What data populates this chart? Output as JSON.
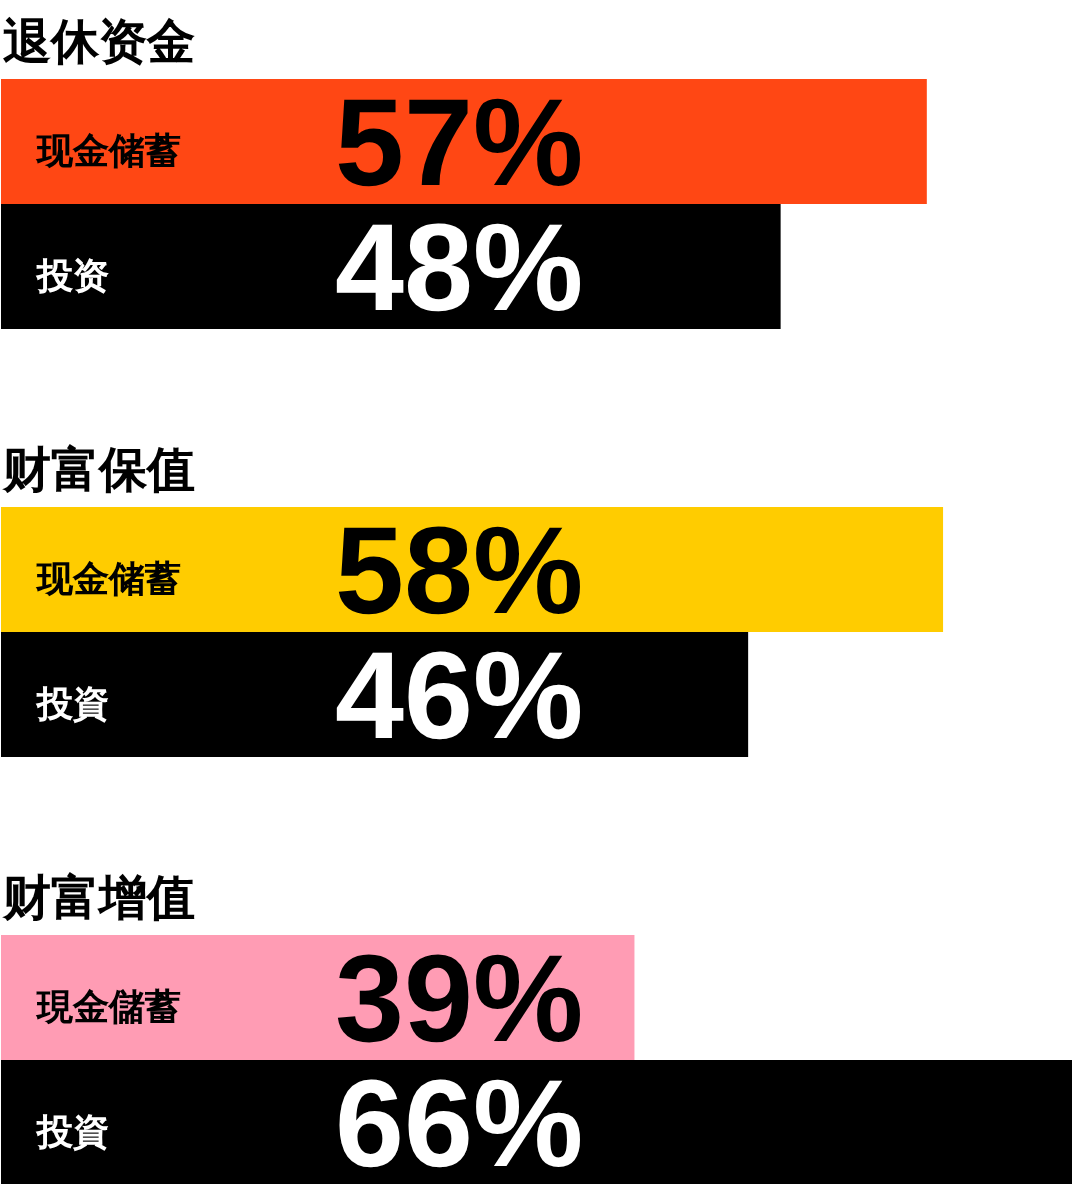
{
  "chart_data": [
    {
      "type": "bar",
      "orientation": "horizontal",
      "title": "退休资金",
      "categories": [
        "现金储蓄",
        "投资"
      ],
      "values": [
        57,
        48
      ],
      "colors": [
        "#ff4714",
        "#000000"
      ],
      "value_labels": [
        "57%",
        "48%"
      ],
      "tick_labels": false
    },
    {
      "type": "bar",
      "orientation": "horizontal",
      "title": "财富保值",
      "categories": [
        "现金储蓄",
        "投資"
      ],
      "values": [
        58,
        46
      ],
      "colors": [
        "#ffcc00",
        "#000000"
      ],
      "value_labels": [
        "58%",
        "46%"
      ],
      "tick_labels": false
    },
    {
      "type": "bar",
      "orientation": "horizontal",
      "title": "财富增值",
      "categories": [
        "現金儲蓄",
        "投資"
      ],
      "values": [
        39,
        66
      ],
      "colors": [
        "#ff9cb4",
        "#000000"
      ],
      "value_labels": [
        "39%",
        "66%"
      ],
      "tick_labels": false
    }
  ]
}
